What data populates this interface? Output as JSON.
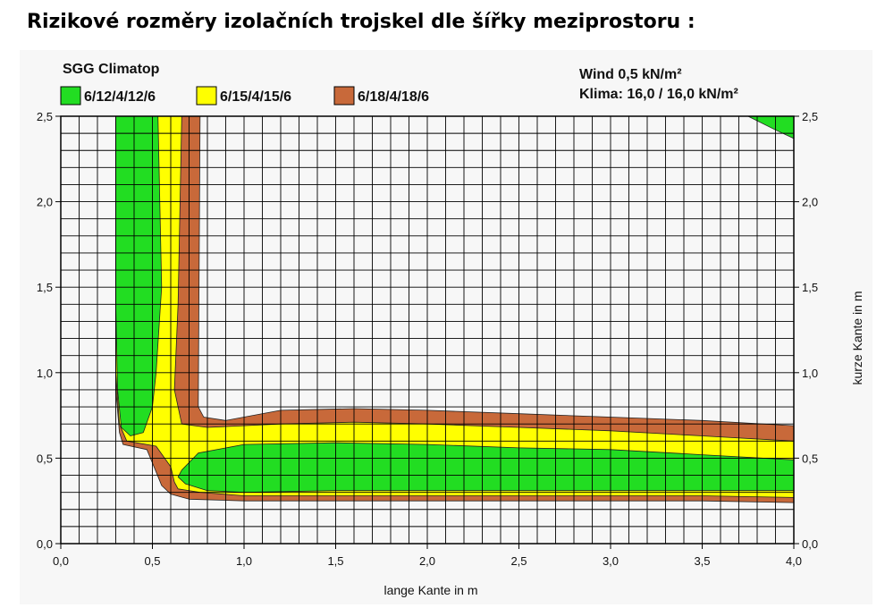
{
  "page": {
    "heading": "Rizikové rozměry izolačních trojskel dle šířky meziprostoru :"
  },
  "chart_data": {
    "type": "area",
    "title": "SGG Climatop",
    "annotations": [
      "Wind 0,5 kN/m²",
      "Klima: 16,0 / 16,0 kN/m²"
    ],
    "xlabel": "lange Kante in m",
    "ylabel_right": "kurze Kante in m",
    "xlim": [
      0,
      4.0
    ],
    "ylim": [
      0,
      2.5
    ],
    "x_ticks": [
      "0,0",
      "0,5",
      "1,0",
      "1,5",
      "2,0",
      "2,5",
      "3,0",
      "3,5",
      "4,0"
    ],
    "y_ticks": [
      "0,0",
      "0,5",
      "1,0",
      "1,5",
      "2,0",
      "2,5"
    ],
    "grid": true,
    "legend_position": "top-left",
    "series": [
      {
        "name": "6/18/4/18/6",
        "color": "#c8693a",
        "regions": [
          [
            [
              0.3,
              2.5
            ],
            [
              0.76,
              2.5
            ],
            [
              0.75,
              0.8
            ],
            [
              0.78,
              0.74
            ],
            [
              0.9,
              0.72
            ],
            [
              1.2,
              0.78
            ],
            [
              1.6,
              0.79
            ],
            [
              2.0,
              0.78
            ],
            [
              2.5,
              0.76
            ],
            [
              3.0,
              0.74
            ],
            [
              3.5,
              0.72
            ],
            [
              4.0,
              0.69
            ],
            [
              4.0,
              0.24
            ],
            [
              3.5,
              0.25
            ],
            [
              3.0,
              0.25
            ],
            [
              2.5,
              0.25
            ],
            [
              2.0,
              0.25
            ],
            [
              1.5,
              0.25
            ],
            [
              1.0,
              0.25
            ],
            [
              0.7,
              0.26
            ],
            [
              0.6,
              0.29
            ],
            [
              0.55,
              0.34
            ],
            [
              0.52,
              0.42
            ],
            [
              0.47,
              0.55
            ],
            [
              0.34,
              0.58
            ],
            [
              0.32,
              0.65
            ],
            [
              0.3,
              0.9
            ]
          ]
        ]
      },
      {
        "name": "6/15/4/15/6",
        "color": "#ffff00",
        "regions": [
          [
            [
              0.3,
              2.5
            ],
            [
              0.66,
              2.5
            ],
            [
              0.64,
              1.4
            ],
            [
              0.62,
              0.9
            ],
            [
              0.66,
              0.7
            ],
            [
              0.8,
              0.68
            ],
            [
              1.2,
              0.7
            ],
            [
              1.6,
              0.71
            ],
            [
              2.0,
              0.7
            ],
            [
              2.5,
              0.68
            ],
            [
              3.0,
              0.66
            ],
            [
              3.5,
              0.63
            ],
            [
              4.0,
              0.6
            ],
            [
              4.0,
              0.27
            ],
            [
              3.5,
              0.28
            ],
            [
              3.0,
              0.28
            ],
            [
              2.5,
              0.28
            ],
            [
              2.0,
              0.28
            ],
            [
              1.5,
              0.28
            ],
            [
              1.0,
              0.28
            ],
            [
              0.76,
              0.3
            ],
            [
              0.64,
              0.32
            ],
            [
              0.62,
              0.36
            ],
            [
              0.6,
              0.45
            ],
            [
              0.52,
              0.57
            ],
            [
              0.36,
              0.6
            ],
            [
              0.32,
              0.7
            ],
            [
              0.3,
              1.0
            ]
          ]
        ]
      },
      {
        "name": "6/12/4/12/6",
        "color": "#22dd22",
        "regions": [
          [
            [
              0.3,
              2.5
            ],
            [
              0.53,
              2.5
            ],
            [
              0.55,
              1.5
            ],
            [
              0.52,
              1.0
            ],
            [
              0.5,
              0.8
            ],
            [
              0.45,
              0.65
            ],
            [
              0.38,
              0.63
            ],
            [
              0.33,
              0.68
            ],
            [
              0.31,
              0.9
            ],
            [
              0.3,
              1.4
            ]
          ],
          [
            [
              0.66,
              0.43
            ],
            [
              0.75,
              0.53
            ],
            [
              1.0,
              0.58
            ],
            [
              1.5,
              0.59
            ],
            [
              2.0,
              0.58
            ],
            [
              2.5,
              0.56
            ],
            [
              3.0,
              0.55
            ],
            [
              3.5,
              0.52
            ],
            [
              4.0,
              0.49
            ],
            [
              4.0,
              0.31
            ],
            [
              3.5,
              0.31
            ],
            [
              3.0,
              0.31
            ],
            [
              2.5,
              0.31
            ],
            [
              2.0,
              0.31
            ],
            [
              1.5,
              0.31
            ],
            [
              1.0,
              0.3
            ],
            [
              0.8,
              0.31
            ],
            [
              0.68,
              0.35
            ],
            [
              0.64,
              0.39
            ]
          ],
          [
            [
              3.75,
              2.5
            ],
            [
              4.0,
              2.5
            ],
            [
              4.0,
              2.37
            ],
            [
              3.9,
              2.42
            ]
          ]
        ]
      }
    ]
  }
}
